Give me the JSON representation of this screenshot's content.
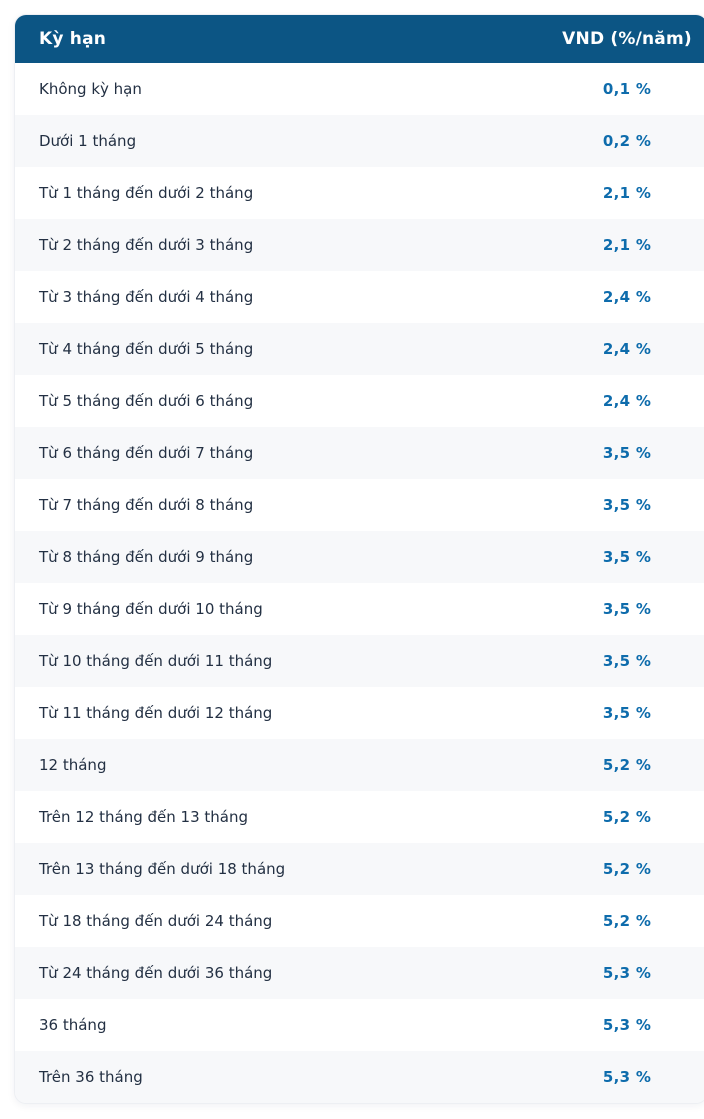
{
  "table": {
    "header": {
      "term_label": "Kỳ hạn",
      "rate_label": "VND (%/năm)"
    },
    "rows": [
      {
        "term": "Không kỳ hạn",
        "rate": "0,1 %"
      },
      {
        "term": "Dưới 1 tháng",
        "rate": "0,2 %"
      },
      {
        "term": "Từ 1 tháng đến dưới 2 tháng",
        "rate": "2,1 %"
      },
      {
        "term": "Từ 2 tháng đến dưới 3 tháng",
        "rate": "2,1 %"
      },
      {
        "term": "Từ 3 tháng đến dưới 4 tháng",
        "rate": "2,4 %"
      },
      {
        "term": "Từ 4 tháng đến dưới 5 tháng",
        "rate": "2,4 %"
      },
      {
        "term": "Từ 5 tháng đến dưới 6 tháng",
        "rate": "2,4 %"
      },
      {
        "term": "Từ 6 tháng đến dưới 7 tháng",
        "rate": "3,5 %"
      },
      {
        "term": "Từ 7 tháng đến dưới 8 tháng",
        "rate": "3,5 %"
      },
      {
        "term": "Từ 8 tháng đến dưới 9 tháng",
        "rate": "3,5 %"
      },
      {
        "term": "Từ 9 tháng đến dưới 10 tháng",
        "rate": "3,5 %"
      },
      {
        "term": "Từ 10 tháng đến dưới 11 tháng",
        "rate": "3,5 %"
      },
      {
        "term": "Từ 11 tháng đến dưới 12 tháng",
        "rate": "3,5 %"
      },
      {
        "term": "12 tháng",
        "rate": "5,2 %"
      },
      {
        "term": "Trên 12 tháng đến 13 tháng",
        "rate": "5,2 %"
      },
      {
        "term": "Trên 13 tháng đến dưới 18 tháng",
        "rate": "5,2 %"
      },
      {
        "term": "Từ 18 tháng đến dưới 24 tháng",
        "rate": "5,2 %"
      },
      {
        "term": "Từ 24 tháng đến dưới 36 tháng",
        "rate": "5,3 %"
      },
      {
        "term": "36 tháng",
        "rate": "5,3 %"
      },
      {
        "term": "Trên 36 tháng",
        "rate": "5,3 %"
      }
    ],
    "colors": {
      "header_bg": "#0c5584",
      "header_text": "#ffffff",
      "row_bg": "#ffffff",
      "row_alt_bg": "#f7f8fa",
      "term_text": "#233043",
      "rate_text": "#0e6cac"
    }
  }
}
